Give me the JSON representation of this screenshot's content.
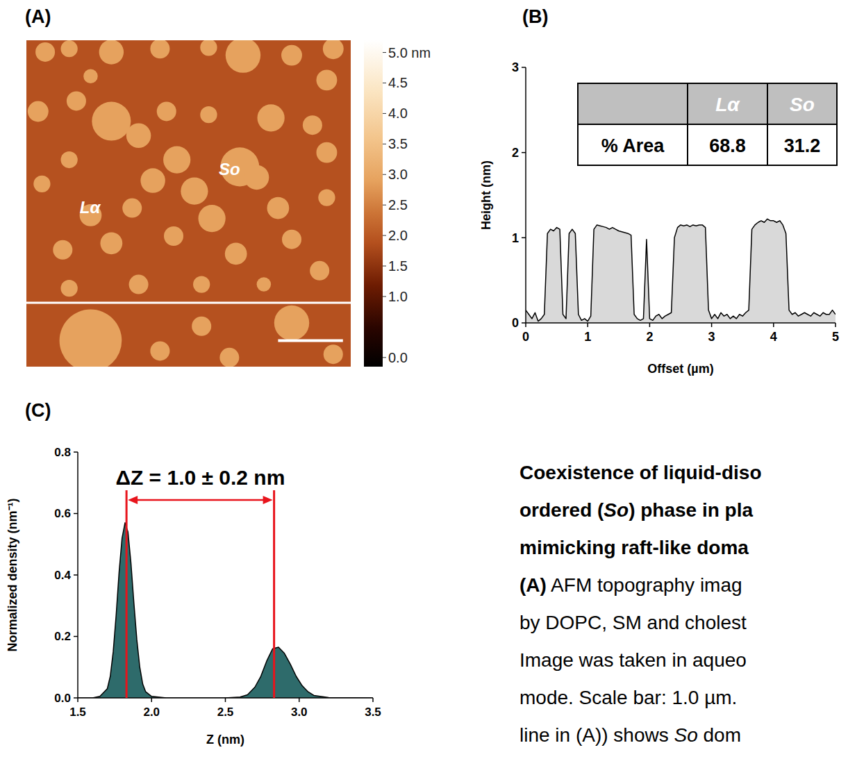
{
  "chart_data": [
    {
      "type": "image",
      "label": "(A)",
      "xlim": [
        0,
        5
      ],
      "ylim": [
        0,
        5
      ],
      "background_height": 1.9,
      "domain_height": 2.9,
      "domains": [
        {
          "x": 0.29,
          "y": 0.18,
          "r": 0.15
        },
        {
          "x": 0.66,
          "y": 0.13,
          "r": 0.13
        },
        {
          "x": 1.31,
          "y": 0.18,
          "r": 0.19
        },
        {
          "x": 2.06,
          "y": 0.13,
          "r": 0.15
        },
        {
          "x": 2.81,
          "y": 0.11,
          "r": 0.13
        },
        {
          "x": 3.34,
          "y": 0.23,
          "r": 0.27
        },
        {
          "x": 4.09,
          "y": 0.23,
          "r": 0.16
        },
        {
          "x": 4.73,
          "y": 0.13,
          "r": 0.16
        },
        {
          "x": 4.63,
          "y": 0.61,
          "r": 0.16
        },
        {
          "x": 0.99,
          "y": 0.55,
          "r": 0.11
        },
        {
          "x": 0.77,
          "y": 0.93,
          "r": 0.15
        },
        {
          "x": 0.18,
          "y": 1.09,
          "r": 0.16
        },
        {
          "x": 1.31,
          "y": 1.24,
          "r": 0.3
        },
        {
          "x": 1.73,
          "y": 1.46,
          "r": 0.19
        },
        {
          "x": 2.16,
          "y": 1.09,
          "r": 0.15
        },
        {
          "x": 2.81,
          "y": 1.14,
          "r": 0.13
        },
        {
          "x": 3.29,
          "y": 1.94,
          "r": 0.3
        },
        {
          "x": 3.77,
          "y": 1.19,
          "r": 0.21
        },
        {
          "x": 3.55,
          "y": 2.1,
          "r": 0.19
        },
        {
          "x": 4.41,
          "y": 1.3,
          "r": 0.15
        },
        {
          "x": 4.63,
          "y": 1.72,
          "r": 0.16
        },
        {
          "x": 2.32,
          "y": 1.83,
          "r": 0.21
        },
        {
          "x": 1.95,
          "y": 2.15,
          "r": 0.19
        },
        {
          "x": 0.66,
          "y": 1.83,
          "r": 0.13
        },
        {
          "x": 0.24,
          "y": 2.2,
          "r": 0.13
        },
        {
          "x": 0.99,
          "y": 2.68,
          "r": 0.17
        },
        {
          "x": 1.63,
          "y": 2.57,
          "r": 0.15
        },
        {
          "x": 2.59,
          "y": 2.31,
          "r": 0.21
        },
        {
          "x": 2.86,
          "y": 2.73,
          "r": 0.21
        },
        {
          "x": 3.88,
          "y": 2.57,
          "r": 0.17
        },
        {
          "x": 4.63,
          "y": 2.41,
          "r": 0.13
        },
        {
          "x": 4.09,
          "y": 3.05,
          "r": 0.15
        },
        {
          "x": 0.56,
          "y": 3.21,
          "r": 0.15
        },
        {
          "x": 1.31,
          "y": 3.11,
          "r": 0.17
        },
        {
          "x": 2.27,
          "y": 3.0,
          "r": 0.15
        },
        {
          "x": 3.23,
          "y": 3.27,
          "r": 0.17
        },
        {
          "x": 2.7,
          "y": 3.74,
          "r": 0.13
        },
        {
          "x": 4.52,
          "y": 3.53,
          "r": 0.15
        },
        {
          "x": 0.66,
          "y": 3.8,
          "r": 0.13
        },
        {
          "x": 1.73,
          "y": 3.74,
          "r": 0.15
        },
        {
          "x": 3.66,
          "y": 3.74,
          "r": 0.11
        },
        {
          "x": 0.99,
          "y": 4.6,
          "r": 0.48
        },
        {
          "x": 2.7,
          "y": 4.38,
          "r": 0.15
        },
        {
          "x": 2.06,
          "y": 4.76,
          "r": 0.15
        },
        {
          "x": 4.09,
          "y": 4.33,
          "r": 0.27
        },
        {
          "x": 4.73,
          "y": 4.81,
          "r": 0.15
        },
        {
          "x": 3.13,
          "y": 4.86,
          "r": 0.15
        }
      ],
      "profile_y": 4.02,
      "scale_bar": {
        "x": 3.88,
        "y": 4.6,
        "length": 1.0
      },
      "annotations": [
        {
          "text": "So",
          "x": 3.13,
          "y": 1.97
        },
        {
          "text": "Lα",
          "x": 0.98,
          "y": 2.56
        }
      ],
      "colorbar": {
        "range": [
          -0.15,
          5.2
        ],
        "ticks": [
          {
            "value": 5,
            "label": "5.0 nm"
          },
          4.5,
          {
            "value": 4,
            "label": "4.0"
          },
          3.5,
          {
            "value": 3,
            "label": "3.0"
          },
          2.5,
          {
            "value": 2,
            "label": "2.0"
          },
          1.5,
          {
            "value": 1,
            "label": "1.0"
          },
          {
            "value": 0,
            "label": "0.0"
          }
        ]
      }
    },
    {
      "type": "area",
      "label": "(B)",
      "x_label": "Offset (µm)",
      "y_label": "Height (nm)",
      "color": "#d9d9d9",
      "x": [
        0,
        0.05,
        0.1,
        0.15,
        0.2,
        0.25,
        0.3,
        0.35,
        0.4,
        0.45,
        0.5,
        0.55,
        0.6,
        0.65,
        0.7,
        0.75,
        0.8,
        0.85,
        0.9,
        0.95,
        1,
        1.05,
        1.1,
        1.15,
        1.2,
        1.25,
        1.3,
        1.35,
        1.4,
        1.45,
        1.5,
        1.55,
        1.6,
        1.65,
        1.7,
        1.75,
        1.8,
        1.85,
        1.9,
        1.95,
        2,
        2.05,
        2.1,
        2.15,
        2.2,
        2.25,
        2.3,
        2.35,
        2.4,
        2.45,
        2.5,
        2.55,
        2.6,
        2.65,
        2.7,
        2.75,
        2.8,
        2.85,
        2.9,
        2.95,
        3,
        3.05,
        3.1,
        3.15,
        3.2,
        3.25,
        3.3,
        3.35,
        3.4,
        3.45,
        3.5,
        3.55,
        3.6,
        3.65,
        3.7,
        3.75,
        3.8,
        3.85,
        3.9,
        3.95,
        4,
        4.05,
        4.1,
        4.15,
        4.2,
        4.25,
        4.3,
        4.35,
        4.4,
        4.45,
        4.5,
        4.55,
        4.6,
        4.65,
        4.7,
        4.75,
        4.8,
        4.85,
        4.9,
        4.95,
        5
      ],
      "values": [
        0.15,
        0.1,
        0.05,
        0.12,
        0.02,
        0.05,
        0.1,
        1.05,
        1.1,
        1.08,
        1.12,
        1.1,
        0.1,
        0.05,
        1.05,
        1.1,
        1.05,
        0.1,
        0.03,
        0.05,
        0.02,
        0.08,
        1.1,
        1.15,
        1.14,
        1.13,
        1.12,
        1.1,
        1.12,
        1.1,
        1.08,
        1.07,
        1.06,
        1.05,
        1.03,
        0.1,
        0.05,
        0.03,
        0.05,
        0.98,
        0.05,
        0.03,
        0.08,
        0.1,
        0.05,
        0.08,
        0.1,
        0.12,
        1.0,
        1.12,
        1.15,
        1.14,
        1.15,
        1.13,
        1.15,
        1.14,
        1.15,
        1.15,
        1.12,
        0.15,
        0.05,
        0.1,
        0.05,
        0.12,
        0.08,
        0.1,
        0.05,
        0.08,
        0.05,
        0.1,
        0.08,
        0.12,
        0.15,
        1.1,
        1.15,
        1.18,
        1.2,
        1.18,
        1.22,
        1.2,
        1.2,
        1.18,
        1.2,
        1.15,
        1.05,
        0.15,
        0.1,
        0.12,
        0.08,
        0.1,
        0.12,
        0.1,
        0.08,
        0.12,
        0.1,
        0.08,
        0.12,
        0.1,
        0.1,
        0.15,
        0.1
      ],
      "xlim": [
        0,
        5
      ],
      "ylim": [
        0,
        3
      ],
      "xticks": [
        0,
        1,
        2,
        3,
        4,
        5
      ],
      "yticks": [
        0,
        1,
        2,
        3
      ],
      "table": {
        "columns": [
          "Lα",
          "So"
        ],
        "rows": [
          {
            "label": "% Area",
            "values": [
              68.8,
              31.2
            ]
          }
        ]
      }
    },
    {
      "type": "area",
      "label": "(C)",
      "x_label": "Z (nm)",
      "y_label": "Normalized density (nm⁻¹)",
      "color": "#2e6b6b",
      "x": [
        1.5,
        1.6,
        1.65,
        1.7,
        1.72,
        1.74,
        1.76,
        1.78,
        1.8,
        1.82,
        1.84,
        1.86,
        1.88,
        1.9,
        1.92,
        1.94,
        1.96,
        2.0,
        2.1,
        2.3,
        2.5,
        2.6,
        2.65,
        2.7,
        2.74,
        2.78,
        2.82,
        2.86,
        2.9,
        2.94,
        2.98,
        3.02,
        3.06,
        3.1,
        3.2,
        3.5
      ],
      "values": [
        0,
        0,
        0.005,
        0.03,
        0.07,
        0.15,
        0.27,
        0.41,
        0.52,
        0.57,
        0.54,
        0.44,
        0.31,
        0.19,
        0.1,
        0.045,
        0.02,
        0.005,
        0,
        0,
        0,
        0.003,
        0.01,
        0.035,
        0.07,
        0.12,
        0.16,
        0.165,
        0.145,
        0.11,
        0.07,
        0.04,
        0.02,
        0.008,
        0.001,
        0
      ],
      "xlim": [
        1.5,
        3.5
      ],
      "ylim": [
        0,
        0.8
      ],
      "xticks": [
        1.5,
        {
          "value": 2,
          "label": "2.0"
        },
        2.5,
        {
          "value": 3,
          "label": "3.0"
        },
        3.5
      ],
      "yticks": [
        {
          "value": 0,
          "label": "0.0"
        },
        0.2,
        0.4,
        0.6,
        0.8
      ],
      "vlines": [
        1.83,
        2.83
      ],
      "annotations": [
        {
          "text": "ΔZ = 1.0 ± 0.2 nm"
        }
      ]
    }
  ],
  "caption": {
    "lines": [
      [
        {
          "text": "Coexistence of liquid-diso",
          "bold": true
        }
      ],
      [
        {
          "text": "ordered (",
          "bold": true
        },
        {
          "text": "So",
          "bold": true,
          "italic": true
        },
        {
          "text": ") phase in pla",
          "bold": true
        }
      ],
      [
        {
          "text": "mimicking raft-like doma",
          "bold": true
        }
      ],
      [
        {
          "text": "(A)",
          "bold": true
        },
        {
          "text": " AFM topography imag"
        }
      ],
      [
        {
          "text": "by DOPC, SM and cholest"
        }
      ],
      [
        {
          "text": "Image was taken in aqueo"
        }
      ],
      [
        {
          "text": "mode. Scale bar: 1.0 µm."
        }
      ],
      [
        {
          "text": "line in (A)) shows "
        },
        {
          "text": "So",
          "italic": true
        },
        {
          "text": " dom"
        }
      ]
    ]
  }
}
